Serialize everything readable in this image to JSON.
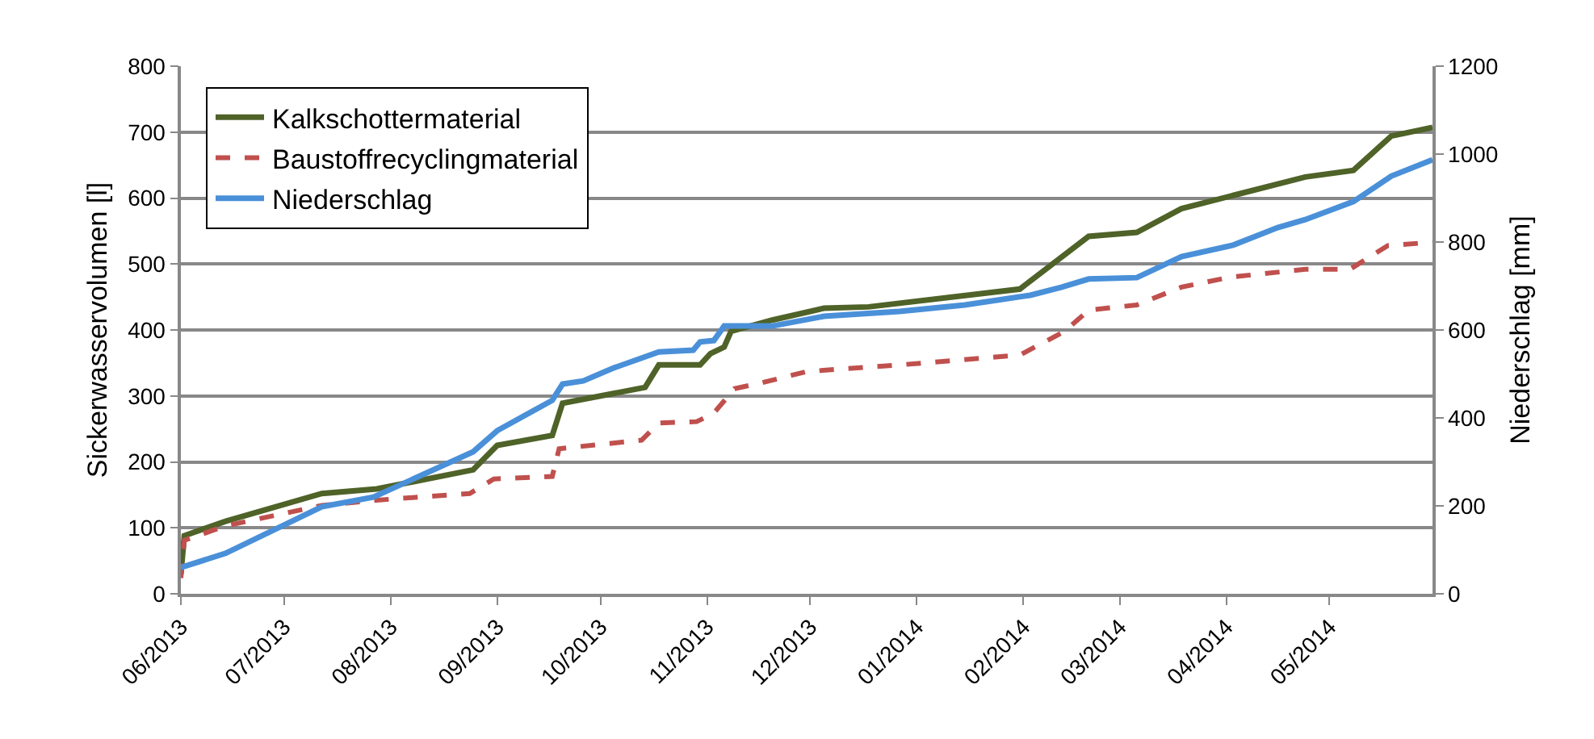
{
  "chart_data": {
    "type": "line",
    "ylabel": "Sickerwasservolumen [l]",
    "y2label": "Niederschlag [mm]",
    "xlim": [
      "2013-06-01",
      "2014-05-31"
    ],
    "xticks": [
      {
        "value": "2013-06-01",
        "label": "06/2013"
      },
      {
        "value": "2013-07-01",
        "label": "07/2013"
      },
      {
        "value": "2013-08-01",
        "label": "08/2013"
      },
      {
        "value": "2013-09-01",
        "label": "09/2013"
      },
      {
        "value": "2013-10-01",
        "label": "10/2013"
      },
      {
        "value": "2013-11-01",
        "label": "11/2013"
      },
      {
        "value": "2013-12-01",
        "label": "12/2013"
      },
      {
        "value": "2014-01-01",
        "label": "01/2014"
      },
      {
        "value": "2014-02-01",
        "label": "02/2014"
      },
      {
        "value": "2014-03-01",
        "label": "03/2014"
      },
      {
        "value": "2014-04-01",
        "label": "04/2014"
      },
      {
        "value": "2014-05-01",
        "label": "05/2014"
      }
    ],
    "ylim": [
      0,
      800
    ],
    "yticks": [
      0,
      100,
      200,
      300,
      400,
      500,
      600,
      700,
      800
    ],
    "y2lim": [
      0,
      1200
    ],
    "y2ticks": [
      0,
      200,
      400,
      600,
      800,
      1000,
      1200
    ],
    "grid": "y",
    "legend": "top left",
    "series": [
      {
        "name": "Kalkschottermaterial",
        "color": "#4f6228",
        "line_style": "solid",
        "x": [
          "2013-06-01",
          "2013-06-02",
          "2013-06-14",
          "2013-07-12",
          "2013-07-28",
          "2013-08-25",
          "2013-09-01",
          "2013-09-17",
          "2013-09-20",
          "2013-10-14",
          "2013-10-18",
          "2013-10-30",
          "2013-11-02",
          "2013-11-06",
          "2013-11-08",
          "2013-11-20",
          "2013-12-05",
          "2013-12-18",
          "2014-01-31",
          "2014-02-20",
          "2014-03-06",
          "2014-03-19",
          "2014-04-03",
          "2014-04-24",
          "2014-05-08",
          "2014-05-19",
          "2014-05-31"
        ],
        "values": [
          30,
          88,
          110,
          152,
          159,
          188,
          225,
          240,
          289,
          313,
          347,
          347,
          364,
          374,
          398,
          415,
          433,
          435,
          462,
          542,
          548,
          584,
          604,
          632,
          642,
          694,
          707
        ]
      },
      {
        "name": "Baustoffrecyclingmaterial",
        "color": "#c0504d",
        "line_style": "dashed",
        "x": [
          "2013-06-01",
          "2013-06-02",
          "2013-06-14",
          "2013-07-12",
          "2013-07-28",
          "2013-08-24",
          "2013-08-31",
          "2013-09-17",
          "2013-09-19",
          "2013-10-13",
          "2013-10-18",
          "2013-10-29",
          "2013-11-03",
          "2013-11-09",
          "2013-11-17",
          "2013-11-30",
          "2013-12-27",
          "2014-01-31",
          "2014-02-13",
          "2014-02-20",
          "2014-03-06",
          "2014-03-19",
          "2014-04-02",
          "2014-04-24",
          "2014-05-07",
          "2014-05-18",
          "2014-05-31"
        ],
        "values": [
          24,
          81,
          103,
          134,
          142,
          152,
          174,
          178,
          220,
          233,
          259,
          261,
          274,
          311,
          320,
          337,
          347,
          362,
          398,
          430,
          438,
          465,
          480,
          492,
          492,
          528,
          533
        ]
      },
      {
        "name": "Niederschlag",
        "color": "#4a90d9",
        "line_style": "solid",
        "axis": "y2",
        "x": [
          "2013-06-01",
          "2013-06-14",
          "2013-07-12",
          "2013-07-27",
          "2013-08-25",
          "2013-09-01",
          "2013-09-17",
          "2013-09-20",
          "2013-09-26",
          "2013-10-05",
          "2013-10-18",
          "2013-10-28",
          "2013-10-30",
          "2013-11-03",
          "2013-11-06",
          "2013-11-20",
          "2013-12-05",
          "2013-12-27",
          "2014-01-15",
          "2014-02-03",
          "2014-02-12",
          "2014-02-20",
          "2014-03-06",
          "2014-03-19",
          "2014-04-03",
          "2014-04-16",
          "2014-04-24",
          "2014-05-08",
          "2014-05-19",
          "2014-05-31"
        ],
        "values": [
          60,
          92,
          198,
          220,
          323,
          371,
          440,
          477,
          484,
          514,
          550,
          554,
          573,
          576,
          609,
          609,
          631,
          642,
          657,
          679,
          697,
          716,
          719,
          767,
          793,
          833,
          851,
          892,
          950,
          987
        ]
      }
    ]
  }
}
